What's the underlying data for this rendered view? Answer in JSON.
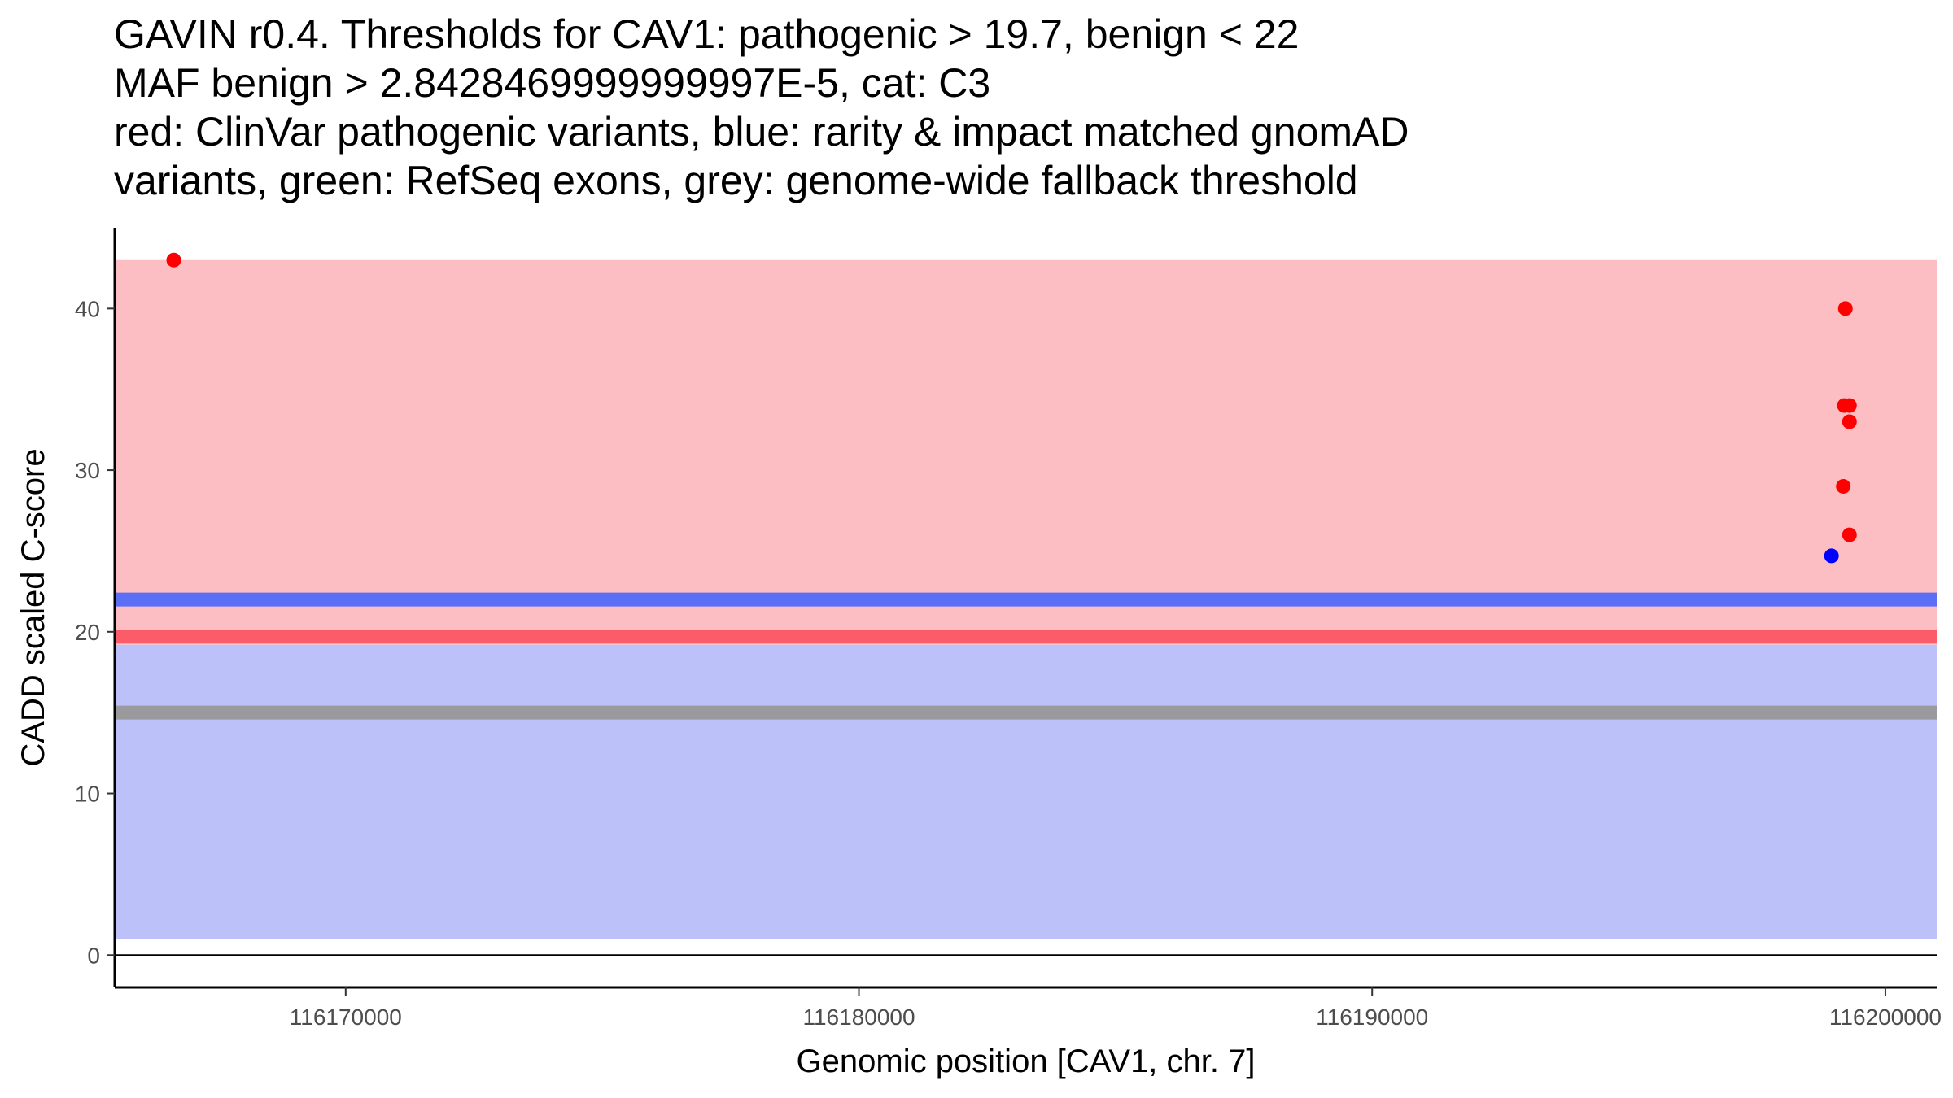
{
  "chart_data": {
    "type": "scatter",
    "title_lines": [
      "GAVIN r0.4. Thresholds for CAV1: pathogenic > 19.7, benign < 22",
      "MAF benign > 2.8428469999999997E-5, cat: C3",
      "red: ClinVar pathogenic variants, blue: rarity & impact matched gnomAD",
      "variants, green: RefSeq exons, grey: genome-wide fallback threshold"
    ],
    "xlabel": "Genomic position [CAV1, chr. 7]",
    "ylabel": "CADD scaled C-score",
    "xlim": [
      116165500,
      116201000
    ],
    "ylim": [
      -2,
      45
    ],
    "x_ticks": [
      {
        "value": 116170000,
        "label": "116170000"
      },
      {
        "value": 116180000,
        "label": "116180000"
      },
      {
        "value": 116190000,
        "label": "116190000"
      },
      {
        "value": 116200000,
        "label": "116200000"
      }
    ],
    "y_ticks": [
      {
        "value": 0,
        "label": "0"
      },
      {
        "value": 10,
        "label": "10"
      },
      {
        "value": 20,
        "label": "20"
      },
      {
        "value": 30,
        "label": "30"
      },
      {
        "value": 40,
        "label": "40"
      }
    ],
    "regions": [
      {
        "name": "benign-region",
        "ymin": 1,
        "ymax": 19.2,
        "color": "#bcc1fa"
      },
      {
        "name": "pathogenic-region",
        "ymin": 19.2,
        "ymax": 43,
        "color": "#fdbec3"
      }
    ],
    "threshold_lines": [
      {
        "name": "benign-threshold",
        "y": 22,
        "color": "#5a6ef6"
      },
      {
        "name": "pathogenic-threshold",
        "y": 19.7,
        "color": "#fc5b6a"
      },
      {
        "name": "fallback-threshold",
        "y": 15,
        "color": "#9a9a9e"
      }
    ],
    "series": [
      {
        "name": "ClinVar pathogenic variants",
        "color": "#ff0000",
        "points": [
          {
            "x": 116166650,
            "y": 43
          },
          {
            "x": 116199220,
            "y": 40
          },
          {
            "x": 116199200,
            "y": 34
          },
          {
            "x": 116199300,
            "y": 34
          },
          {
            "x": 116199300,
            "y": 33
          },
          {
            "x": 116199180,
            "y": 29
          },
          {
            "x": 116199300,
            "y": 26
          }
        ]
      },
      {
        "name": "gnomAD matched variants",
        "color": "#0000ff",
        "points": [
          {
            "x": 116198950,
            "y": 24.7
          }
        ]
      }
    ]
  }
}
